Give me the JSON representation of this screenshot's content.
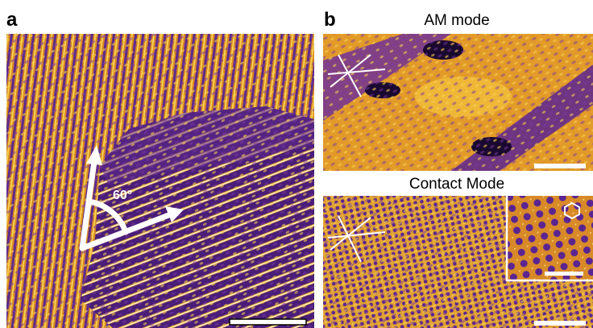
{
  "panels": [
    {
      "label": "a",
      "angle_label": "60°"
    },
    {
      "label": "b",
      "images": [
        {
          "title": "AM mode"
        },
        {
          "title": "Contact Mode"
        }
      ]
    }
  ]
}
